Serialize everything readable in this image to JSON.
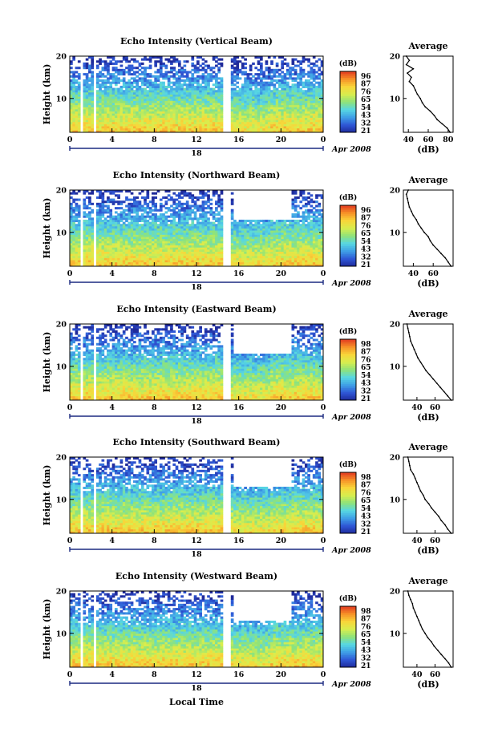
{
  "figure": {
    "xlabel": "Local Time",
    "date_label": "Apr 2008",
    "colors": {
      "white_gap": "#ffffff",
      "line": "#000000"
    }
  },
  "chart_data": [
    {
      "type": "heatmap",
      "title": "Echo Intensity (Vertical Beam)",
      "ylabel": "Height (km)",
      "y_ticks": [
        "20",
        "10"
      ],
      "x_ticks": [
        "0",
        "4",
        "8",
        "12",
        "16",
        "20",
        "0"
      ],
      "day_label": "18",
      "ylim": [
        2,
        20
      ],
      "colorbar": {
        "unit": "(dB)",
        "ticks": [
          "96",
          "87",
          "76",
          "65",
          "54",
          "43",
          "32",
          "21"
        ]
      },
      "colormap": [
        "#1f2a9a",
        "#2f57d6",
        "#3f9fe6",
        "#57d7e3",
        "#8ee37a",
        "#d8ee4e",
        "#f8d63a",
        "#f79328",
        "#e23a20"
      ],
      "gaps_hours": [
        [
          1.0,
          1.3
        ],
        [
          2.3,
          2.6
        ],
        [
          14.6,
          15.2
        ]
      ],
      "profile": {
        "title": "Average",
        "xlabel": "(dB)",
        "x_ticks": [
          "40",
          "60",
          "80"
        ],
        "xlim": [
          35,
          85
        ],
        "y_ticks": [
          "20",
          "10"
        ],
        "ylim": [
          2,
          20
        ],
        "heights": [
          2,
          3,
          4,
          5,
          6,
          7,
          8,
          9,
          10,
          11,
          12,
          13,
          14,
          15,
          16,
          17,
          18,
          19,
          20
        ],
        "values": [
          82,
          79,
          74,
          69,
          66,
          62,
          57,
          54,
          52,
          49,
          47,
          45,
          41,
          43,
          39,
          45,
          38,
          41,
          38
        ]
      }
    },
    {
      "type": "heatmap",
      "title": "Echo Intensity (Northward Beam)",
      "ylabel": "Height (km)",
      "y_ticks": [
        "20",
        "10"
      ],
      "x_ticks": [
        "0",
        "4",
        "8",
        "12",
        "16",
        "20",
        "0"
      ],
      "day_label": "18",
      "ylim": [
        2,
        20
      ],
      "colorbar": {
        "unit": "(dB)",
        "ticks": [
          "96",
          "87",
          "76",
          "65",
          "54",
          "43",
          "32",
          "21"
        ]
      },
      "colormap": [
        "#1f2a9a",
        "#2f57d6",
        "#3f9fe6",
        "#57d7e3",
        "#8ee37a",
        "#d8ee4e",
        "#f8d63a",
        "#f79328",
        "#e23a20"
      ],
      "gaps_hours": [
        [
          1.0,
          1.3
        ],
        [
          2.3,
          2.6
        ],
        [
          14.6,
          15.2
        ]
      ],
      "profile": {
        "title": "Average",
        "xlabel": "(dB)",
        "x_ticks": [
          "40",
          "60"
        ],
        "xlim": [
          30,
          80
        ],
        "y_ticks": [
          "20",
          "10"
        ],
        "ylim": [
          2,
          20
        ],
        "heights": [
          2,
          3,
          4,
          5,
          6,
          7,
          8,
          9,
          10,
          11,
          12,
          13,
          14,
          15,
          16,
          17,
          18,
          19,
          20
        ],
        "values": [
          78,
          75,
          72,
          68,
          64,
          60,
          57,
          55,
          51,
          48,
          45,
          43,
          40,
          38,
          36,
          35,
          34,
          33,
          35
        ]
      }
    },
    {
      "type": "heatmap",
      "title": "Echo Intensity (Eastward Beam)",
      "ylabel": "Height (km)",
      "y_ticks": [
        "20",
        "10"
      ],
      "x_ticks": [
        "0",
        "4",
        "8",
        "12",
        "16",
        "20",
        "0"
      ],
      "day_label": "18",
      "ylim": [
        2,
        20
      ],
      "colorbar": {
        "unit": "(dB)",
        "ticks": [
          "98",
          "87",
          "76",
          "65",
          "54",
          "43",
          "32",
          "21"
        ]
      },
      "colormap": [
        "#1f2a9a",
        "#2f57d6",
        "#3f9fe6",
        "#57d7e3",
        "#8ee37a",
        "#d8ee4e",
        "#f8d63a",
        "#f79328",
        "#e23a20"
      ],
      "gaps_hours": [
        [
          1.0,
          1.3
        ],
        [
          2.3,
          2.6
        ],
        [
          14.6,
          15.2
        ]
      ],
      "profile": {
        "title": "Average",
        "xlabel": "(dB)",
        "x_ticks": [
          "40",
          "60"
        ],
        "xlim": [
          25,
          80
        ],
        "y_ticks": [
          "20",
          "10"
        ],
        "ylim": [
          2,
          20
        ],
        "heights": [
          2,
          3,
          4,
          5,
          6,
          7,
          8,
          9,
          10,
          11,
          12,
          13,
          14,
          15,
          16,
          17,
          18,
          19,
          20
        ],
        "values": [
          78,
          74,
          70,
          66,
          62,
          58,
          54,
          50,
          47,
          44,
          41,
          39,
          37,
          35,
          33,
          32,
          31,
          30,
          29
        ]
      }
    },
    {
      "type": "heatmap",
      "title": "Echo Intensity (Southward Beam)",
      "ylabel": "Height (km)",
      "y_ticks": [
        "20",
        "10"
      ],
      "x_ticks": [
        "0",
        "4",
        "8",
        "12",
        "16",
        "20",
        "0"
      ],
      "day_label": "18",
      "ylim": [
        2,
        20
      ],
      "colorbar": {
        "unit": "(dB)",
        "ticks": [
          "98",
          "87",
          "76",
          "65",
          "54",
          "43",
          "32",
          "21"
        ]
      },
      "colormap": [
        "#1f2a9a",
        "#2f57d6",
        "#3f9fe6",
        "#57d7e3",
        "#8ee37a",
        "#d8ee4e",
        "#f8d63a",
        "#f79328",
        "#e23a20"
      ],
      "gaps_hours": [
        [
          1.0,
          1.3
        ],
        [
          2.3,
          2.6
        ],
        [
          14.6,
          15.2
        ]
      ],
      "profile": {
        "title": "Average",
        "xlabel": "(dB)",
        "x_ticks": [
          "40",
          "60"
        ],
        "xlim": [
          25,
          80
        ],
        "y_ticks": [
          "20",
          "10"
        ],
        "ylim": [
          2,
          20
        ],
        "heights": [
          2,
          3,
          4,
          5,
          6,
          7,
          8,
          9,
          10,
          11,
          12,
          13,
          14,
          15,
          16,
          17,
          18,
          19,
          20
        ],
        "values": [
          78,
          74,
          71,
          67,
          64,
          60,
          56,
          53,
          49,
          47,
          44,
          42,
          40,
          38,
          36,
          33,
          32,
          31,
          30
        ]
      }
    },
    {
      "type": "heatmap",
      "title": "Echo Intensity (Westward Beam)",
      "ylabel": "Height (km)",
      "y_ticks": [
        "20",
        "10"
      ],
      "x_ticks": [
        "0",
        "4",
        "8",
        "12",
        "16",
        "20",
        "0"
      ],
      "day_label": "18",
      "ylim": [
        2,
        20
      ],
      "colorbar": {
        "unit": "(dB)",
        "ticks": [
          "98",
          "87",
          "76",
          "65",
          "54",
          "43",
          "32",
          "21"
        ]
      },
      "colormap": [
        "#1f2a9a",
        "#2f57d6",
        "#3f9fe6",
        "#57d7e3",
        "#8ee37a",
        "#d8ee4e",
        "#f8d63a",
        "#f79328",
        "#e23a20"
      ],
      "gaps_hours": [
        [
          1.0,
          1.3
        ],
        [
          2.3,
          2.6
        ],
        [
          14.6,
          15.2
        ]
      ],
      "profile": {
        "title": "Average",
        "xlabel": "(dB)",
        "x_ticks": [
          "40",
          "60"
        ],
        "xlim": [
          25,
          80
        ],
        "y_ticks": [
          "20",
          "10"
        ],
        "ylim": [
          2,
          20
        ],
        "heights": [
          2,
          3,
          4,
          5,
          6,
          7,
          8,
          9,
          10,
          11,
          12,
          13,
          14,
          15,
          16,
          17,
          18,
          19,
          20
        ],
        "values": [
          78,
          75,
          71,
          67,
          63,
          59,
          56,
          52,
          49,
          46,
          44,
          42,
          40,
          38,
          36,
          35,
          33,
          31,
          30
        ]
      }
    }
  ]
}
